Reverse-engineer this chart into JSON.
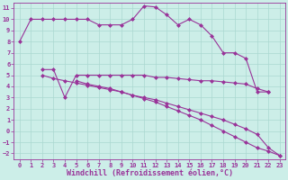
{
  "line1_x": [
    0,
    1,
    2,
    3,
    4,
    5,
    6,
    7,
    8,
    9,
    10,
    11,
    12,
    13,
    14,
    15,
    16,
    17,
    18,
    19,
    20,
    21,
    22
  ],
  "line1_y": [
    8.0,
    10.0,
    10.0,
    10.0,
    10.0,
    10.0,
    10.0,
    9.5,
    9.5,
    9.5,
    10.0,
    11.2,
    11.1,
    10.4,
    9.5,
    10.0,
    9.5,
    8.5,
    7.0,
    7.0,
    6.5,
    3.5,
    3.5
  ],
  "line2_x": [
    2,
    3,
    4,
    5,
    6,
    7,
    8,
    9,
    10,
    11,
    12,
    13,
    14,
    15,
    16,
    17,
    18,
    19,
    20,
    21,
    22
  ],
  "line2_y": [
    5.5,
    5.5,
    3.0,
    5.0,
    5.0,
    5.0,
    5.0,
    5.0,
    5.0,
    5.0,
    4.8,
    4.8,
    4.7,
    4.6,
    4.5,
    4.5,
    4.4,
    4.3,
    4.2,
    3.8,
    3.5
  ],
  "line3_x": [
    2,
    3,
    4,
    5,
    6,
    7,
    8,
    9,
    10,
    11,
    12,
    13,
    14,
    15,
    16,
    17,
    18,
    19,
    20,
    21,
    22,
    23
  ],
  "line3_y": [
    5.0,
    4.7,
    4.5,
    4.3,
    4.1,
    3.9,
    3.7,
    3.5,
    3.2,
    3.0,
    2.8,
    2.5,
    2.2,
    1.9,
    1.6,
    1.3,
    1.0,
    0.6,
    0.2,
    -0.3,
    -1.5,
    -2.2
  ],
  "line4_x": [
    5,
    6,
    7,
    8,
    9,
    10,
    11,
    12,
    13,
    14,
    15,
    16,
    17,
    18,
    19,
    20,
    21,
    22,
    23
  ],
  "line4_y": [
    4.5,
    4.2,
    4.0,
    3.8,
    3.5,
    3.2,
    2.9,
    2.6,
    2.2,
    1.8,
    1.4,
    1.0,
    0.5,
    0.0,
    -0.5,
    -1.0,
    -1.5,
    -1.8,
    -2.2
  ],
  "bg_color": "#cceee8",
  "grid_color": "#aad8d0",
  "line_color": "#993399",
  "marker": "D",
  "marker_size": 2.0,
  "linewidth": 0.8,
  "xlabel": "Windchill (Refroidissement éolien,°C)",
  "xlim": [
    -0.5,
    23.5
  ],
  "ylim": [
    -2.5,
    11.5
  ],
  "xticks": [
    0,
    1,
    2,
    3,
    4,
    5,
    6,
    7,
    8,
    9,
    10,
    11,
    12,
    13,
    14,
    15,
    16,
    17,
    18,
    19,
    20,
    21,
    22,
    23
  ],
  "yticks": [
    -2,
    -1,
    0,
    1,
    2,
    3,
    4,
    5,
    6,
    7,
    8,
    9,
    10,
    11
  ],
  "tick_fontsize": 5.0,
  "xlabel_fontsize": 6.0
}
